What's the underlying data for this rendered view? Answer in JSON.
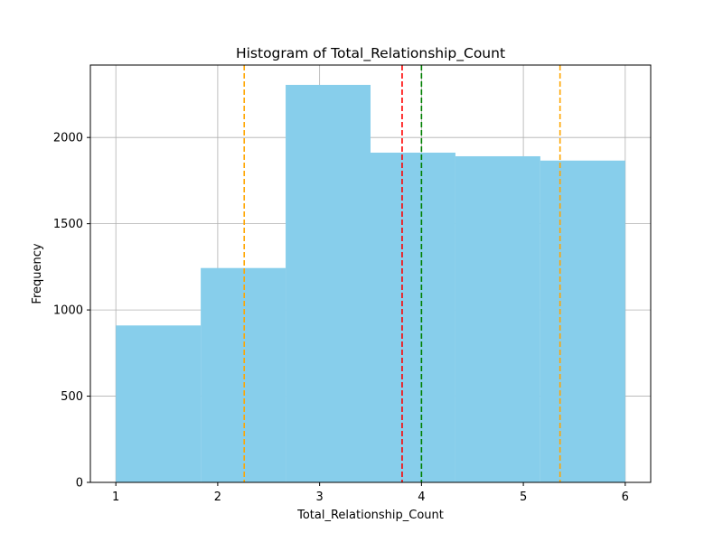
{
  "chart_data": {
    "type": "bar",
    "title": "Histogram of Total_Relationship_Count",
    "xlabel": "Total_Relationship_Count",
    "ylabel": "Frequency",
    "xlim": [
      0.75,
      6.25
    ],
    "ylim": [
      0,
      2420
    ],
    "grid": true,
    "bar_color": "#87CEEB",
    "bins": [
      {
        "start": 1.0,
        "end": 1.8333,
        "count": 910
      },
      {
        "start": 1.8333,
        "end": 2.6667,
        "count": 1243
      },
      {
        "start": 2.6667,
        "end": 3.5,
        "count": 2305
      },
      {
        "start": 3.5,
        "end": 4.3333,
        "count": 1912
      },
      {
        "start": 4.3333,
        "end": 5.1667,
        "count": 1891
      },
      {
        "start": 5.1667,
        "end": 6.0,
        "count": 1866
      }
    ],
    "x_ticks": [
      1,
      2,
      3,
      4,
      5,
      6
    ],
    "y_ticks": [
      0,
      500,
      1000,
      1500,
      2000
    ],
    "reference_lines": [
      {
        "x": 2.26,
        "color": "#FFA500",
        "style": "dashed"
      },
      {
        "x": 3.81,
        "color": "#FF0000",
        "style": "dashed"
      },
      {
        "x": 4.0,
        "color": "#008000",
        "style": "dashed"
      },
      {
        "x": 5.36,
        "color": "#FFA500",
        "style": "dashed"
      }
    ]
  }
}
